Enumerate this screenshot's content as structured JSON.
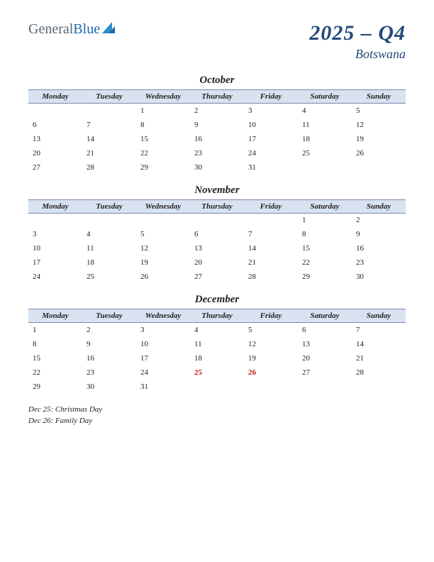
{
  "logo": {
    "part1": "General",
    "part2": "Blue"
  },
  "title": {
    "period": "2025 – Q4",
    "country": "Botswana"
  },
  "day_headers": [
    "Monday",
    "Tuesday",
    "Wednesday",
    "Thursday",
    "Friday",
    "Saturday",
    "Sunday"
  ],
  "colors": {
    "header_bg": "#d9e2f1",
    "header_border": "#7a8aa8",
    "title_color": "#24497a",
    "holiday_color": "#c01818",
    "logo_general": "#5a6570",
    "logo_blue": "#1a6bb0",
    "logo_triangle": "#2d8bc9"
  },
  "months": [
    {
      "name": "October",
      "weeks": [
        [
          "",
          "",
          "1",
          "2",
          "3",
          "4",
          "5"
        ],
        [
          "6",
          "7",
          "8",
          "9",
          "10",
          "11",
          "12"
        ],
        [
          "13",
          "14",
          "15",
          "16",
          "17",
          "18",
          "19"
        ],
        [
          "20",
          "21",
          "22",
          "23",
          "24",
          "25",
          "26"
        ],
        [
          "27",
          "28",
          "29",
          "30",
          "31",
          "",
          ""
        ]
      ],
      "holidays": []
    },
    {
      "name": "November",
      "weeks": [
        [
          "",
          "",
          "",
          "",
          "",
          "1",
          "2"
        ],
        [
          "3",
          "4",
          "5",
          "6",
          "7",
          "8",
          "9"
        ],
        [
          "10",
          "11",
          "12",
          "13",
          "14",
          "15",
          "16"
        ],
        [
          "17",
          "18",
          "19",
          "20",
          "21",
          "22",
          "23"
        ],
        [
          "24",
          "25",
          "26",
          "27",
          "28",
          "29",
          "30"
        ]
      ],
      "holidays": []
    },
    {
      "name": "December",
      "weeks": [
        [
          "1",
          "2",
          "3",
          "4",
          "5",
          "6",
          "7"
        ],
        [
          "8",
          "9",
          "10",
          "11",
          "12",
          "13",
          "14"
        ],
        [
          "15",
          "16",
          "17",
          "18",
          "19",
          "20",
          "21"
        ],
        [
          "22",
          "23",
          "24",
          "25",
          "26",
          "27",
          "28"
        ],
        [
          "29",
          "30",
          "31",
          "",
          "",
          "",
          ""
        ]
      ],
      "holidays": [
        "25",
        "26"
      ]
    }
  ],
  "holiday_list": [
    "Dec 25: Christmas Day",
    "Dec 26: Family Day"
  ]
}
